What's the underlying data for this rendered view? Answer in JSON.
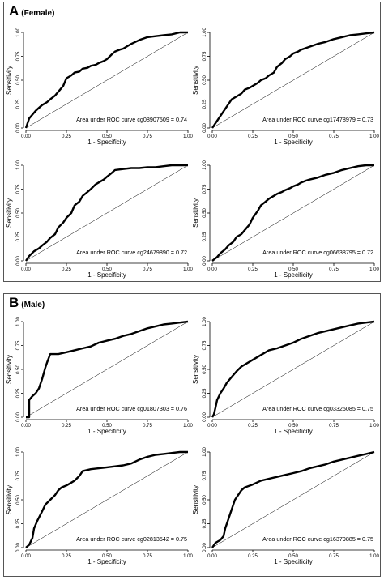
{
  "panels": [
    {
      "letter": "A",
      "subtitle": "(Female)"
    },
    {
      "letter": "B",
      "subtitle": "(Male)"
    }
  ],
  "chart_data": [
    {
      "type": "line",
      "panel": "A",
      "cpg": "cg08907509",
      "auc_text": "Area under ROC curve cg08907509 = 0.74",
      "xlabel": "1 - Specificity",
      "ylabel": "Sensitivity",
      "xlim": [
        0,
        1
      ],
      "ylim": [
        0,
        1
      ],
      "xticks": [
        "0.00",
        "0.25",
        "0.50",
        "0.75",
        "1.00"
      ],
      "yticks": [
        "0.00",
        "0.25",
        "0.50",
        "0.75",
        "1.00"
      ],
      "x": [
        0,
        0.01,
        0.02,
        0.04,
        0.06,
        0.08,
        0.1,
        0.13,
        0.15,
        0.18,
        0.2,
        0.23,
        0.25,
        0.28,
        0.3,
        0.33,
        0.35,
        0.38,
        0.4,
        0.43,
        0.45,
        0.48,
        0.5,
        0.53,
        0.55,
        0.58,
        0.6,
        0.63,
        0.65,
        0.7,
        0.75,
        0.8,
        0.85,
        0.9,
        0.95,
        1
      ],
      "y": [
        0,
        0.05,
        0.1,
        0.14,
        0.18,
        0.21,
        0.24,
        0.27,
        0.3,
        0.34,
        0.38,
        0.44,
        0.52,
        0.55,
        0.58,
        0.59,
        0.62,
        0.63,
        0.65,
        0.66,
        0.68,
        0.7,
        0.72,
        0.77,
        0.8,
        0.82,
        0.83,
        0.86,
        0.88,
        0.92,
        0.95,
        0.96,
        0.97,
        0.98,
        1,
        1
      ]
    },
    {
      "type": "line",
      "panel": "A",
      "cpg": "cg17478979",
      "auc_text": "Area under ROC curve cg17478979 = 0.73",
      "xlabel": "1 - Specificity",
      "ylabel": "Sensitivity",
      "xlim": [
        0,
        1
      ],
      "ylim": [
        0,
        1
      ],
      "xticks": [
        "0.00",
        "0.25",
        "0.50",
        "0.75",
        "1.00"
      ],
      "yticks": [
        "0.00",
        "0.25",
        "0.50",
        "0.75",
        "1.00"
      ],
      "x": [
        0,
        0.02,
        0.04,
        0.06,
        0.08,
        0.1,
        0.12,
        0.15,
        0.18,
        0.2,
        0.23,
        0.25,
        0.28,
        0.3,
        0.33,
        0.35,
        0.38,
        0.4,
        0.43,
        0.45,
        0.48,
        0.5,
        0.53,
        0.55,
        0.6,
        0.65,
        0.7,
        0.75,
        0.8,
        0.85,
        0.9,
        0.95,
        1
      ],
      "y": [
        0,
        0.05,
        0.1,
        0.15,
        0.2,
        0.25,
        0.3,
        0.33,
        0.36,
        0.4,
        0.42,
        0.44,
        0.47,
        0.5,
        0.52,
        0.55,
        0.58,
        0.64,
        0.68,
        0.72,
        0.75,
        0.78,
        0.8,
        0.82,
        0.85,
        0.88,
        0.9,
        0.93,
        0.95,
        0.97,
        0.98,
        0.99,
        1
      ]
    },
    {
      "type": "line",
      "panel": "A",
      "cpg": "cg24679890",
      "auc_text": "Area under ROC curve cg24679890 = 0.72",
      "xlabel": "1 - Specificity",
      "ylabel": "Sensitivity",
      "xlim": [
        0,
        1
      ],
      "ylim": [
        0,
        1
      ],
      "xticks": [
        "0.00",
        "0.25",
        "0.50",
        "0.75",
        "1.00"
      ],
      "yticks": [
        "0.00",
        "0.25",
        "0.50",
        "0.75",
        "1.00"
      ],
      "x": [
        0,
        0.02,
        0.05,
        0.08,
        0.1,
        0.13,
        0.15,
        0.18,
        0.2,
        0.23,
        0.25,
        0.28,
        0.3,
        0.33,
        0.35,
        0.38,
        0.4,
        0.43,
        0.45,
        0.48,
        0.5,
        0.53,
        0.55,
        0.6,
        0.65,
        0.7,
        0.75,
        0.8,
        0.85,
        0.9,
        0.95,
        1
      ],
      "y": [
        0,
        0.05,
        0.1,
        0.13,
        0.16,
        0.2,
        0.24,
        0.28,
        0.35,
        0.4,
        0.45,
        0.5,
        0.58,
        0.62,
        0.68,
        0.72,
        0.75,
        0.8,
        0.82,
        0.85,
        0.88,
        0.92,
        0.95,
        0.96,
        0.97,
        0.97,
        0.98,
        0.98,
        0.99,
        1,
        1,
        1
      ]
    },
    {
      "type": "line",
      "panel": "A",
      "cpg": "cg06638795",
      "auc_text": "Area under ROC curve cg06638795 = 0.72",
      "xlabel": "1 - Specificity",
      "ylabel": "Sensitivity",
      "xlim": [
        0,
        1
      ],
      "ylim": [
        0,
        1
      ],
      "xticks": [
        "0.00",
        "0.25",
        "0.50",
        "0.75",
        "1.00"
      ],
      "yticks": [
        "0.00",
        "0.25",
        "0.50",
        "0.75",
        "1.00"
      ],
      "x": [
        0,
        0.03,
        0.05,
        0.08,
        0.1,
        0.13,
        0.15,
        0.18,
        0.2,
        0.23,
        0.25,
        0.28,
        0.3,
        0.33,
        0.35,
        0.38,
        0.4,
        0.43,
        0.45,
        0.48,
        0.5,
        0.53,
        0.55,
        0.58,
        0.6,
        0.65,
        0.7,
        0.75,
        0.8,
        0.85,
        0.9,
        0.95,
        1
      ],
      "y": [
        0,
        0.04,
        0.08,
        0.12,
        0.16,
        0.2,
        0.25,
        0.28,
        0.32,
        0.38,
        0.45,
        0.52,
        0.58,
        0.62,
        0.65,
        0.68,
        0.7,
        0.72,
        0.74,
        0.76,
        0.78,
        0.8,
        0.82,
        0.84,
        0.85,
        0.87,
        0.9,
        0.92,
        0.95,
        0.97,
        0.99,
        1,
        1
      ]
    },
    {
      "type": "line",
      "panel": "B",
      "cpg": "cg01807303",
      "auc_text": "Area under ROC curve cg01807303 = 0.76",
      "xlabel": "1 - Specificity",
      "ylabel": "Sensitivity",
      "xlim": [
        0,
        1
      ],
      "ylim": [
        0,
        1
      ],
      "xticks": [
        "0.00",
        "0.25",
        "0.50",
        "0.75",
        "1.00"
      ],
      "yticks": [
        "0.00",
        "0.25",
        "0.50",
        "0.75",
        "1.00"
      ],
      "x": [
        0,
        0.02,
        0.02,
        0.04,
        0.06,
        0.08,
        0.1,
        0.12,
        0.13,
        0.15,
        0.2,
        0.25,
        0.3,
        0.35,
        0.4,
        0.45,
        0.5,
        0.55,
        0.6,
        0.65,
        0.7,
        0.75,
        0.8,
        0.85,
        0.9,
        0.95,
        1
      ],
      "y": [
        0,
        0,
        0.18,
        0.22,
        0.25,
        0.3,
        0.4,
        0.52,
        0.57,
        0.66,
        0.66,
        0.68,
        0.7,
        0.72,
        0.74,
        0.78,
        0.8,
        0.82,
        0.85,
        0.87,
        0.9,
        0.93,
        0.95,
        0.97,
        0.98,
        0.99,
        1
      ]
    },
    {
      "type": "line",
      "panel": "B",
      "cpg": "cg03325085",
      "auc_text": "Area under ROC curve cg03325085 = 0.75",
      "xlabel": "1 - Specificity",
      "ylabel": "Sensitivity",
      "xlim": [
        0,
        1
      ],
      "ylim": [
        0,
        1
      ],
      "xticks": [
        "0.00",
        "0.25",
        "0.50",
        "0.75",
        "1.00"
      ],
      "yticks": [
        "0.00",
        "0.25",
        "0.50",
        "0.75",
        "1.00"
      ],
      "x": [
        0,
        0.01,
        0.02,
        0.03,
        0.05,
        0.07,
        0.09,
        0.12,
        0.15,
        0.18,
        0.2,
        0.25,
        0.3,
        0.35,
        0.4,
        0.45,
        0.5,
        0.55,
        0.6,
        0.65,
        0.7,
        0.75,
        0.8,
        0.85,
        0.9,
        0.95,
        1
      ],
      "y": [
        0,
        0.03,
        0.1,
        0.18,
        0.25,
        0.3,
        0.36,
        0.42,
        0.48,
        0.53,
        0.55,
        0.6,
        0.65,
        0.7,
        0.72,
        0.75,
        0.78,
        0.82,
        0.85,
        0.88,
        0.9,
        0.92,
        0.94,
        0.96,
        0.98,
        0.99,
        1
      ]
    },
    {
      "type": "line",
      "panel": "B",
      "cpg": "cg02813542",
      "auc_text": "Area under ROC curve cg02813542 = 0.75",
      "xlabel": "1 - Specificity",
      "ylabel": "Sensitivity",
      "xlim": [
        0,
        1
      ],
      "ylim": [
        0,
        1
      ],
      "xticks": [
        "0.00",
        "0.25",
        "0.50",
        "0.75",
        "1.00"
      ],
      "yticks": [
        "0.00",
        "0.25",
        "0.50",
        "0.75",
        "1.00"
      ],
      "x": [
        0,
        0.02,
        0.04,
        0.05,
        0.07,
        0.1,
        0.12,
        0.15,
        0.18,
        0.2,
        0.22,
        0.25,
        0.28,
        0.3,
        0.33,
        0.35,
        0.4,
        0.45,
        0.5,
        0.55,
        0.6,
        0.65,
        0.7,
        0.75,
        0.8,
        0.85,
        0.9,
        0.95,
        1
      ],
      "y": [
        0,
        0.03,
        0.1,
        0.2,
        0.28,
        0.38,
        0.45,
        0.5,
        0.55,
        0.6,
        0.63,
        0.65,
        0.68,
        0.7,
        0.75,
        0.8,
        0.82,
        0.83,
        0.84,
        0.85,
        0.86,
        0.88,
        0.92,
        0.95,
        0.97,
        0.98,
        0.99,
        1,
        1
      ]
    },
    {
      "type": "line",
      "panel": "B",
      "cpg": "cg16379885",
      "auc_text": "Area under ROC curve cg16379885 = 0.75",
      "xlabel": "1 - Specificity",
      "ylabel": "Sensitivity",
      "xlim": [
        0,
        1
      ],
      "ylim": [
        0,
        1
      ],
      "xticks": [
        "0.00",
        "0.25",
        "0.50",
        "0.75",
        "1.00"
      ],
      "yticks": [
        "0.00",
        "0.25",
        "0.50",
        "0.75",
        "1.00"
      ],
      "x": [
        0,
        0.02,
        0.05,
        0.07,
        0.08,
        0.1,
        0.12,
        0.14,
        0.16,
        0.18,
        0.2,
        0.25,
        0.3,
        0.35,
        0.4,
        0.45,
        0.5,
        0.55,
        0.6,
        0.65,
        0.7,
        0.75,
        0.8,
        0.85,
        0.9,
        0.95,
        1
      ],
      "y": [
        0,
        0.05,
        0.08,
        0.12,
        0.2,
        0.3,
        0.4,
        0.5,
        0.55,
        0.6,
        0.63,
        0.66,
        0.7,
        0.72,
        0.74,
        0.76,
        0.78,
        0.8,
        0.83,
        0.85,
        0.87,
        0.9,
        0.92,
        0.94,
        0.96,
        0.98,
        1
      ]
    }
  ]
}
